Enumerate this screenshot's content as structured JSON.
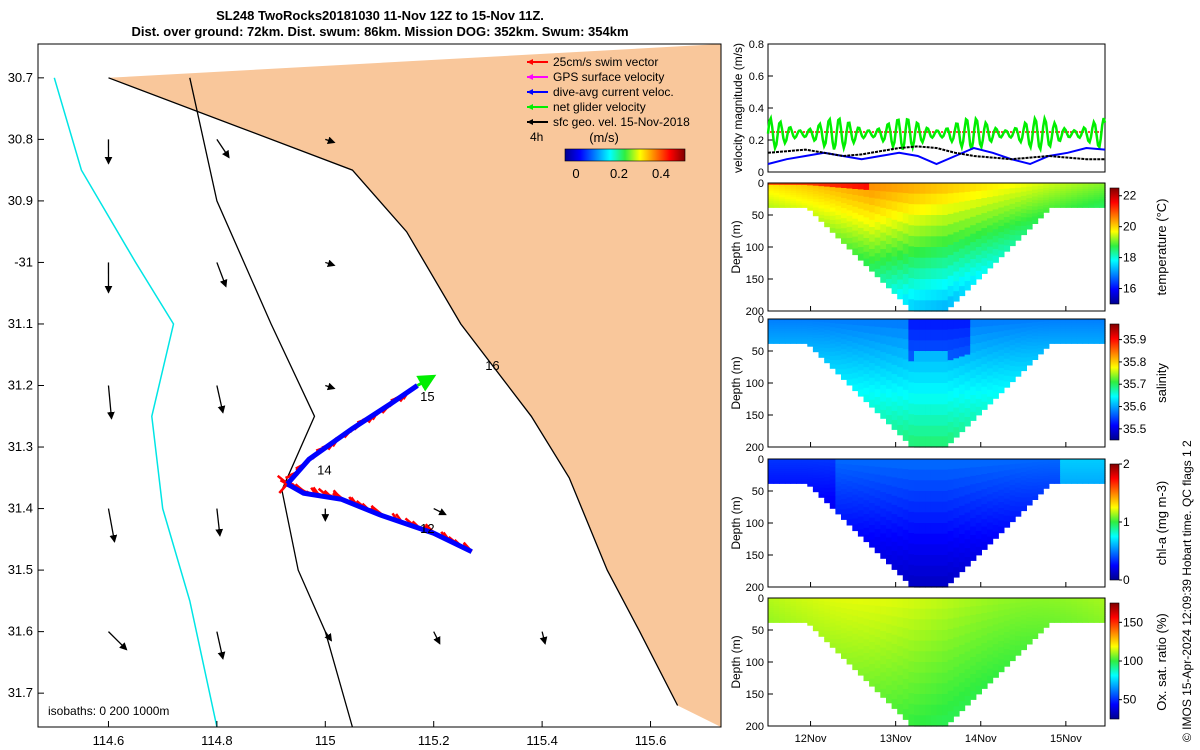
{
  "header": {
    "title_line1": "SL248 TwoRocks20181030 11-Nov 12Z to 15-Nov 11Z.",
    "title_line2": "Dist. over ground: 72km. Dist. swum: 86km. Mission DOG: 352km. Swum: 354km"
  },
  "credit": "© IMOS 15-Apr-2024 12:09:39 Hobart time. QC flags 1  2",
  "colors": {
    "land": "#f9c79b",
    "swim_vector": "#ff0000",
    "gps_velocity": "#ff00ff",
    "current_velocity": "#0000ff",
    "net_velocity": "#00ee00",
    "sfc_geo": "#000000",
    "isobath_0": "#00e5e5",
    "isobath_other": "#000000"
  },
  "map": {
    "legend": [
      {
        "label": "25cm/s swim vector",
        "color_key": "swim_vector"
      },
      {
        "label": "GPS surface velocity",
        "color_key": "gps_velocity"
      },
      {
        "label": "dive-avg current veloc.",
        "color_key": "current_velocity"
      },
      {
        "label": "net glider velocity",
        "color_key": "net_velocity"
      },
      {
        "label": "sfc geo. vel. 15-Nov-2018",
        "color_key": "sfc_geo"
      }
    ],
    "time_step_label": "4h",
    "colorbar_title": "(m/s)",
    "colorbar_ticks": [
      "0",
      "0.2",
      "0.4"
    ],
    "isobaths_label": "isobaths: 0   200   1000m",
    "day_labels": [
      {
        "text": "12",
        "lon": 115.175,
        "lat": -31.44
      },
      {
        "text": "14",
        "lon": 114.985,
        "lat": -31.345
      },
      {
        "text": "15",
        "lon": 115.175,
        "lat": -31.225
      },
      {
        "text": "16",
        "lon": 115.295,
        "lat": -31.175
      }
    ]
  },
  "chart_data": [
    {
      "type": "map",
      "name": "glider-track-map",
      "x_ticks": [
        114.6,
        114.8,
        115,
        115.2,
        115.4,
        115.6
      ],
      "y_tick_labels": [
        "30.7",
        "30.8",
        "30.9",
        "-31",
        "31.1",
        "31.2",
        "31.3",
        "31.4",
        "31.5",
        "31.6",
        "31.7"
      ],
      "y_tick_values": [
        -30.7,
        -30.8,
        -30.9,
        -31.0,
        -31.1,
        -31.2,
        -31.3,
        -31.4,
        -31.5,
        -31.6,
        -31.7
      ],
      "xlim": [
        114.47,
        115.73
      ],
      "ylim": [
        -31.755,
        -30.645
      ],
      "track_outbound": [
        [
          115.27,
          -31.47
        ],
        [
          115.2,
          -31.44
        ],
        [
          115.1,
          -31.41
        ],
        [
          115.03,
          -31.385
        ],
        [
          114.96,
          -31.375
        ],
        [
          114.93,
          -31.36
        ]
      ],
      "track_return": [
        [
          114.93,
          -31.36
        ],
        [
          114.97,
          -31.32
        ],
        [
          115.05,
          -31.27
        ],
        [
          115.12,
          -31.23
        ],
        [
          115.17,
          -31.2
        ]
      ],
      "net_velocity_end": [
        115.2,
        -31.185
      ],
      "geo_velocity_grid": {
        "lons": [
          114.6,
          114.8,
          115.0,
          115.2,
          115.4,
          115.6
        ],
        "lats": [
          -30.8,
          -31.0,
          -31.2,
          -31.4,
          -31.6
        ],
        "u_v": [
          [
            [
              0.0,
              -0.4
            ],
            [
              0.2,
              -0.3
            ],
            [
              0.15,
              -0.05
            ],
            null,
            null,
            null
          ],
          [
            [
              0.0,
              -0.5
            ],
            [
              0.15,
              -0.4
            ],
            [
              0.15,
              -0.05
            ],
            null,
            null,
            null
          ],
          [
            [
              0.05,
              -0.55
            ],
            [
              0.1,
              -0.45
            ],
            [
              0.15,
              -0.05
            ],
            null,
            null,
            null
          ],
          [
            [
              0.1,
              -0.55
            ],
            [
              0.05,
              -0.45
            ],
            [
              0.0,
              -0.2
            ],
            [
              0.2,
              -0.1
            ],
            null,
            null
          ],
          [
            [
              0.3,
              -0.3
            ],
            [
              0.1,
              -0.45
            ],
            [
              0.1,
              -0.15
            ],
            [
              0.1,
              -0.2
            ],
            [
              0.05,
              -0.2
            ],
            null
          ]
        ]
      },
      "isobath_0": [
        [
          114.6,
          -30.7
        ],
        [
          115.05,
          -30.85
        ],
        [
          115.15,
          -30.95
        ],
        [
          115.25,
          -31.1
        ],
        [
          115.38,
          -31.25
        ],
        [
          115.45,
          -31.35
        ],
        [
          115.52,
          -31.5
        ],
        [
          115.58,
          -31.6
        ],
        [
          115.65,
          -31.72
        ]
      ],
      "isobath_200": [
        [
          114.75,
          -30.7
        ],
        [
          114.8,
          -30.9
        ],
        [
          114.9,
          -31.1
        ],
        [
          114.98,
          -31.25
        ],
        [
          114.92,
          -31.37
        ],
        [
          114.95,
          -31.5
        ],
        [
          115.0,
          -31.6
        ],
        [
          115.05,
          -31.755
        ]
      ],
      "isobath_1000": [
        [
          114.5,
          -30.7
        ],
        [
          114.55,
          -30.85
        ],
        [
          114.65,
          -31.0
        ],
        [
          114.72,
          -31.1
        ],
        [
          114.68,
          -31.25
        ],
        [
          114.7,
          -31.4
        ],
        [
          114.75,
          -31.55
        ],
        [
          114.8,
          -31.755
        ]
      ]
    },
    {
      "type": "line",
      "name": "velocity-magnitude",
      "ylabel": "velocity magnitude (m/s)",
      "ylim": [
        0,
        0.8
      ],
      "y_ticks": [
        0,
        0.2,
        0.4,
        0.6,
        0.8
      ],
      "x_range_days": [
        "11-Nov 12Z",
        "15-Nov 11Z"
      ],
      "series": [
        {
          "color_key": "swim_vector",
          "constant": 0.25
        },
        {
          "color_key": "net_velocity",
          "mean": 0.24,
          "amplitude": 0.1
        },
        {
          "color_key": "current_velocity",
          "values": [
            0.05,
            0.08,
            0.1,
            0.12,
            0.1,
            0.08,
            0.1,
            0.12,
            0.1,
            0.05,
            0.1,
            0.15,
            0.12,
            0.08,
            0.05,
            0.1,
            0.12,
            0.15,
            0.14
          ]
        },
        {
          "color_key": "sfc_geo",
          "values": [
            0.12,
            0.13,
            0.14,
            0.12,
            0.1,
            0.11,
            0.13,
            0.15,
            0.16,
            0.15,
            0.12,
            0.1,
            0.09,
            0.08,
            0.09,
            0.1,
            0.09,
            0.08,
            0.08
          ]
        }
      ]
    },
    {
      "type": "heatmap",
      "name": "temperature-section",
      "colorbar_label": "temperature (°C)",
      "colorbar_range": [
        15,
        22.5
      ],
      "colorbar_ticks": [
        16,
        18,
        20,
        22
      ],
      "ylim": [
        200,
        0
      ],
      "y_ticks": [
        0,
        50,
        100,
        150,
        200
      ],
      "ylabel": "Depth (m)",
      "surface_value": 20,
      "bottom_value": 17.5
    },
    {
      "type": "heatmap",
      "name": "salinity-section",
      "colorbar_label": "salinity",
      "colorbar_range": [
        35.45,
        35.97
      ],
      "colorbar_ticks": [
        35.5,
        35.6,
        35.7,
        35.8,
        35.9
      ],
      "ylim": [
        200,
        0
      ],
      "y_ticks": [
        0,
        50,
        100,
        150,
        200
      ],
      "ylabel": "Depth (m)",
      "surface_value": 35.6,
      "bottom_value": 35.65
    },
    {
      "type": "heatmap",
      "name": "chla-section",
      "colorbar_label": "chl-a (mg m-3)",
      "colorbar_range": [
        0,
        2
      ],
      "colorbar_ticks": [
        0,
        1,
        2
      ],
      "ylim": [
        200,
        0
      ],
      "y_ticks": [
        0,
        50,
        100,
        150,
        200
      ],
      "ylabel": "Depth (m)",
      "surface_value": 0.3,
      "bottom_value": 0.2
    },
    {
      "type": "heatmap",
      "name": "oxygen-section",
      "colorbar_label": "Ox. sat. ratio (%)",
      "colorbar_range": [
        25,
        175
      ],
      "colorbar_ticks": [
        50,
        100,
        150
      ],
      "ylim": [
        200,
        0
      ],
      "y_ticks": [
        0,
        50,
        100,
        150,
        200
      ],
      "ylabel": "Depth (m)",
      "surface_value": 110,
      "bottom_value": 100
    }
  ],
  "time_axis": {
    "tick_labels": [
      "12Nov",
      "13Nov",
      "14Nov",
      "15Nov"
    ],
    "tick_values_days": [
      12,
      13,
      14,
      15
    ],
    "range_days": [
      11.5,
      15.46
    ]
  }
}
